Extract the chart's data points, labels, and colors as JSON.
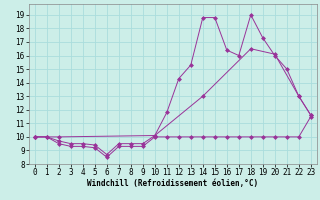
{
  "title": "",
  "xlabel": "Windchill (Refroidissement éolien,°C)",
  "background_color": "#cceee8",
  "line_color": "#993399",
  "xlim": [
    -0.5,
    23.5
  ],
  "ylim": [
    8.0,
    19.8
  ],
  "xticks": [
    0,
    1,
    2,
    3,
    4,
    5,
    6,
    7,
    8,
    9,
    10,
    11,
    12,
    13,
    14,
    15,
    16,
    17,
    18,
    19,
    20,
    21,
    22,
    23
  ],
  "yticks": [
    8,
    9,
    10,
    11,
    12,
    13,
    14,
    15,
    16,
    17,
    18,
    19
  ],
  "grid_color": "#aadddd",
  "series1_x": [
    0,
    1,
    2,
    3,
    4,
    5,
    6,
    7,
    8,
    9,
    10,
    11,
    12,
    13,
    14,
    15,
    16,
    17,
    18,
    19,
    20,
    21,
    22,
    23
  ],
  "series1_y": [
    10.0,
    10.0,
    9.5,
    9.3,
    9.3,
    9.2,
    8.5,
    9.3,
    9.3,
    9.3,
    10.0,
    10.0,
    10.0,
    10.0,
    10.0,
    10.0,
    10.0,
    10.0,
    10.0,
    10.0,
    10.0,
    10.0,
    10.0,
    11.5
  ],
  "series2_x": [
    0,
    1,
    2,
    3,
    4,
    5,
    6,
    7,
    8,
    9,
    10,
    11,
    12,
    13,
    14,
    15,
    16,
    17,
    18,
    19,
    20,
    21,
    22,
    23
  ],
  "series2_y": [
    10.0,
    10.0,
    9.7,
    9.5,
    9.5,
    9.4,
    8.7,
    9.5,
    9.5,
    9.5,
    10.1,
    11.8,
    14.3,
    15.3,
    18.8,
    18.8,
    16.4,
    16.0,
    19.0,
    17.3,
    16.0,
    15.0,
    13.0,
    11.6
  ],
  "series3_x": [
    0,
    2,
    10,
    14,
    18,
    20,
    22,
    23
  ],
  "series3_y": [
    10.0,
    10.0,
    10.1,
    13.0,
    16.5,
    16.1,
    13.0,
    11.6
  ]
}
